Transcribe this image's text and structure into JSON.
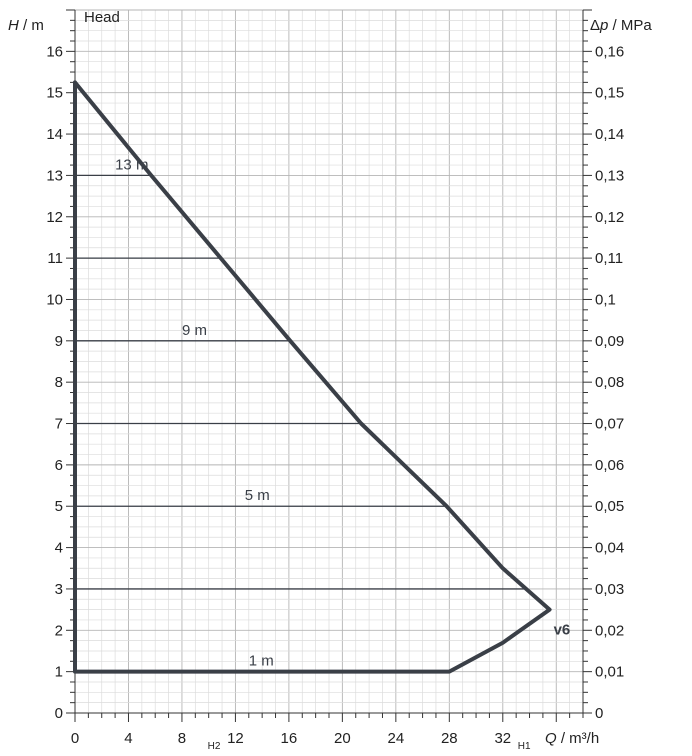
{
  "chart_data": {
    "type": "line",
    "title": "Head",
    "ylabel": {
      "var": "H",
      "unit": " / m"
    },
    "y2label": {
      "prefix": "Δ",
      "var": "p",
      "unit": " / MPa"
    },
    "xlabel": {
      "var": "Q",
      "unit": " / m³/h"
    },
    "xlim": [
      0,
      38
    ],
    "ylim": [
      0,
      17
    ],
    "x_ticks": [
      "0",
      "4",
      "8",
      "12",
      "16",
      "20",
      "24",
      "28",
      "32"
    ],
    "y_ticks": [
      "0",
      "1",
      "2",
      "3",
      "4",
      "5",
      "6",
      "7",
      "8",
      "9",
      "10",
      "11",
      "12",
      "13",
      "14",
      "15",
      "16"
    ],
    "y2_ticks": [
      "0",
      "0,01",
      "0,02",
      "0,03",
      "0,04",
      "0,05",
      "0,06",
      "0,07",
      "0,08",
      "0,09",
      "0,1",
      "0,11",
      "0,12",
      "0,13",
      "0,14",
      "0,15",
      "0,16"
    ],
    "x_markers": [
      {
        "label": "H2",
        "x": 10.4
      },
      {
        "label": "H1",
        "x": 33.6
      }
    ],
    "grid": true,
    "setpoint_levels": [
      {
        "head": 13,
        "label": "13 m",
        "label_x": 3,
        "x_end": 5.7
      },
      {
        "head": 11,
        "label": "",
        "label_x": 0,
        "x_end": 10.9
      },
      {
        "head": 9,
        "label": "9 m",
        "label_x": 8,
        "x_end": 16.1
      },
      {
        "head": 7,
        "label": "",
        "label_x": 0,
        "x_end": 21.4
      },
      {
        "head": 5,
        "label": "5 m",
        "label_x": 12.7,
        "x_end": 27.8
      },
      {
        "head": 3,
        "label": "",
        "label_x": 0,
        "x_end": 33.6
      },
      {
        "head": 1,
        "label": "1 m",
        "label_x": 13,
        "x_end": 28
      }
    ],
    "series": [
      {
        "name": "v6",
        "points": [
          [
            0,
            15.25
          ],
          [
            5.7,
            13
          ],
          [
            10.9,
            11
          ],
          [
            16.1,
            9
          ],
          [
            21.4,
            7
          ],
          [
            27.8,
            5
          ],
          [
            32,
            3.5
          ],
          [
            35.5,
            2.5
          ],
          [
            32,
            1.7
          ],
          [
            28,
            1
          ],
          [
            0,
            1
          ],
          [
            0,
            15.25
          ]
        ]
      }
    ],
    "series_label": {
      "text": "v6",
      "x": 35.8,
      "y": 1.9
    }
  }
}
